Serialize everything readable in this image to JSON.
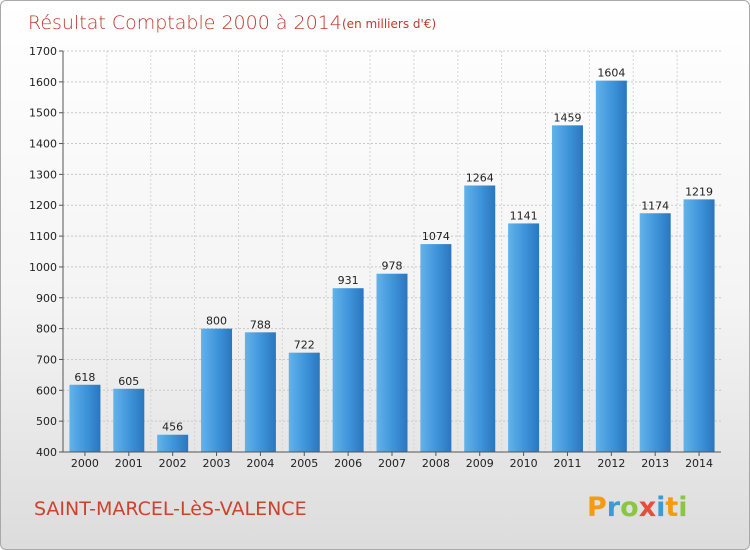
{
  "chart_data": {
    "type": "bar",
    "title": "Résultat Comptable 2000 à 2014",
    "subtitle": "(en milliers d'€)",
    "categories": [
      "2000",
      "2001",
      "2002",
      "2003",
      "2004",
      "2005",
      "2006",
      "2007",
      "2008",
      "2009",
      "2010",
      "2011",
      "2012",
      "2013",
      "2014"
    ],
    "values": [
      618,
      605,
      456,
      800,
      788,
      722,
      931,
      978,
      1074,
      1264,
      1141,
      1459,
      1604,
      1174,
      1219
    ],
    "ylim": [
      400,
      1700
    ],
    "yticks": [
      400,
      500,
      600,
      700,
      800,
      900,
      1000,
      1100,
      1200,
      1300,
      1400,
      1500,
      1600,
      1700
    ],
    "grid": true,
    "bar_color": "#3b8fd6"
  },
  "location_name": "SAINT-MARCEL-LèS-VALENCE",
  "logo": {
    "text": "Proxiti",
    "letters": [
      {
        "ch": "P",
        "color": "#f39c12"
      },
      {
        "ch": "r",
        "color": "#3a9bd8"
      },
      {
        "ch": "o",
        "color": "#8cc63f"
      },
      {
        "ch": "x",
        "color": "#e84c3d"
      },
      {
        "ch": "i",
        "color": "#3a9bd8"
      },
      {
        "ch": "t",
        "color": "#f39c12"
      },
      {
        "ch": "i",
        "color": "#8cc63f"
      }
    ]
  }
}
